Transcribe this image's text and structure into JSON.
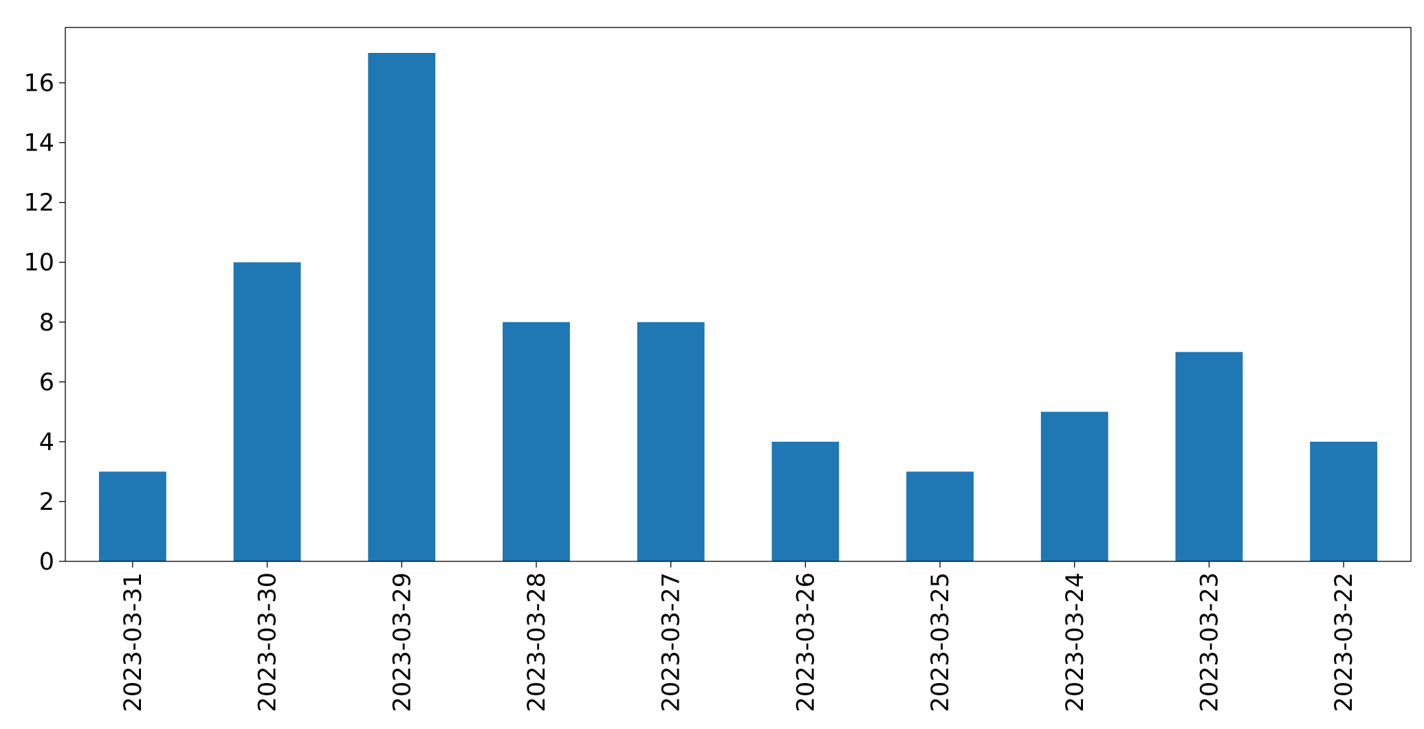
{
  "chart_data": {
    "type": "bar",
    "categories": [
      "2023-03-31",
      "2023-03-30",
      "2023-03-29",
      "2023-03-28",
      "2023-03-27",
      "2023-03-26",
      "2023-03-25",
      "2023-03-24",
      "2023-03-23",
      "2023-03-22"
    ],
    "values": [
      3,
      10,
      17,
      8,
      8,
      4,
      3,
      5,
      7,
      4
    ],
    "color": "#1f77b4",
    "ylim": [
      0,
      17.85
    ],
    "yticks": [
      0,
      2,
      4,
      6,
      8,
      10,
      12,
      14,
      16
    ],
    "grid": false
  }
}
